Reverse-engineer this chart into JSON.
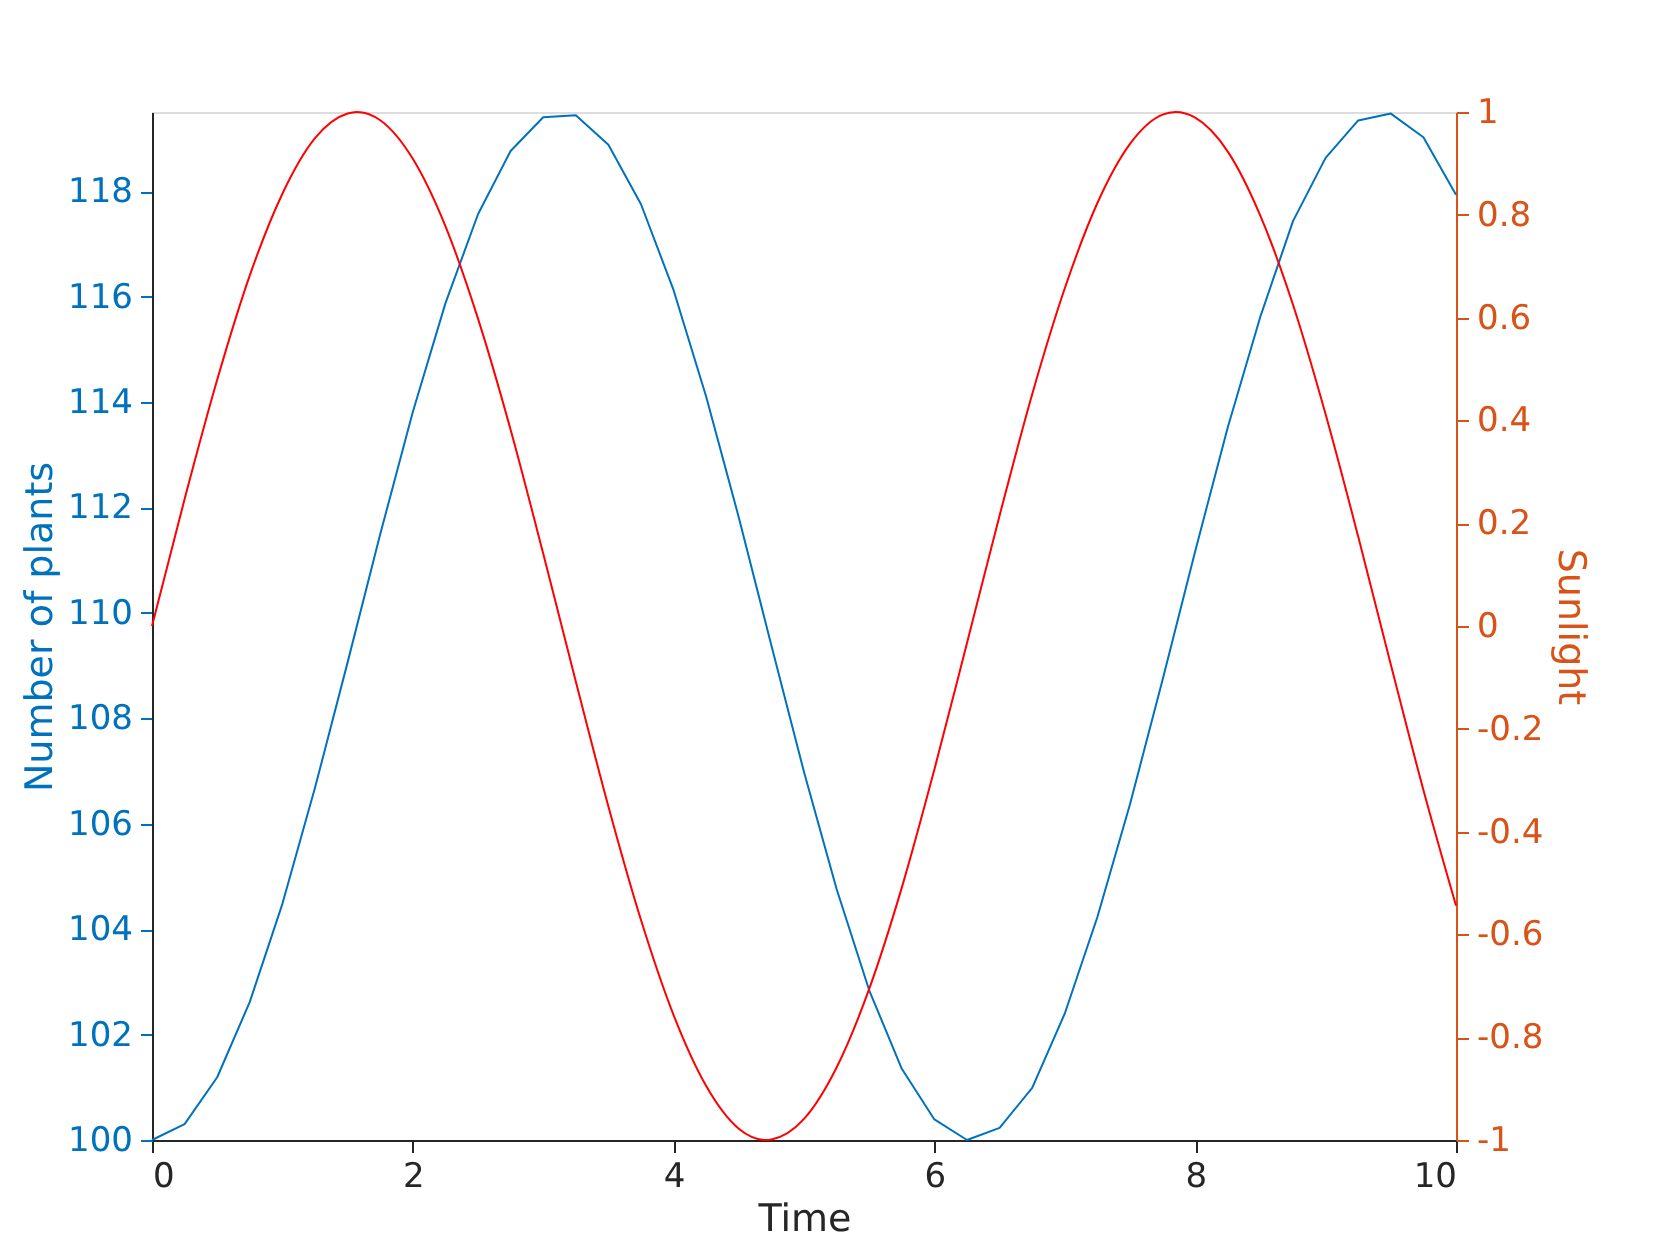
{
  "chart_data": {
    "type": "line",
    "xlabel": "Time",
    "ylabel": "Number of plants",
    "y2label": "Sunlight",
    "xlim": [
      0,
      10
    ],
    "xticks": [
      0,
      2,
      4,
      6,
      8,
      10
    ],
    "ylim": [
      100,
      119.5
    ],
    "yticks": [
      100,
      102,
      104,
      106,
      108,
      110,
      112,
      114,
      116,
      118
    ],
    "y2lim": [
      -1,
      1
    ],
    "y2ticks": [
      -1,
      -0.8,
      -0.6,
      -0.4,
      -0.2,
      0,
      0.2,
      0.4,
      0.6,
      0.8,
      1
    ],
    "grid": false,
    "marker": "none",
    "line_style": "solid",
    "series": [
      {
        "color": "#0072bd",
        "x": [
          0,
          0.25,
          0.5,
          0.75,
          1,
          1.25,
          1.5,
          1.75,
          2,
          2.25,
          2.5,
          2.75,
          3,
          3.25,
          3.5,
          3.75,
          4,
          4.25,
          4.5,
          4.75,
          5,
          5.25,
          5.5,
          5.75,
          6,
          6.25,
          6.5,
          6.75,
          7,
          7.25,
          7.5,
          7.75,
          8,
          8.25,
          8.5,
          8.75,
          9,
          9.25,
          9.5,
          9.75,
          10
        ],
        "values": [
          100.0,
          100.3,
          101.19,
          102.62,
          104.48,
          106.68,
          109.06,
          111.49,
          113.81,
          115.87,
          117.56,
          118.76,
          119.4,
          119.44,
          118.88,
          117.75,
          116.12,
          114.1,
          111.81,
          109.38,
          106.98,
          104.76,
          102.84,
          101.35,
          100.39,
          100.0,
          100.23,
          100.99,
          102.4,
          104.23,
          106.37,
          108.73,
          111.17,
          113.52,
          115.62,
          117.43,
          118.63,
          119.34,
          119.47,
          119.02,
          117.93
        ]
      },
      {
        "color": "#ff0000",
        "axis": "y2",
        "x": [
          0,
          0.25,
          0.5,
          0.75,
          1,
          1.25,
          1.5,
          1.57,
          1.75,
          2,
          2.25,
          2.5,
          2.75,
          3,
          3.25,
          3.5,
          3.75,
          4,
          4.25,
          4.5,
          4.71,
          4.75,
          5,
          5.25,
          5.5,
          5.75,
          6,
          6.25,
          6.5,
          6.75,
          7,
          7.25,
          7.5,
          7.75,
          7.85,
          8,
          8.25,
          8.5,
          8.75,
          9,
          9.25,
          9.5,
          9.75,
          10
        ],
        "values": [
          0,
          0.247,
          0.479,
          0.682,
          0.841,
          0.949,
          0.997,
          1.0,
          0.984,
          0.909,
          0.778,
          0.598,
          0.382,
          0.141,
          -0.108,
          -0.351,
          -0.572,
          -0.757,
          -0.895,
          -0.978,
          -1.0,
          -0.999,
          -0.959,
          -0.859,
          -0.706,
          -0.509,
          -0.279,
          -0.033,
          0.215,
          0.451,
          0.657,
          0.823,
          0.938,
          0.995,
          1.0,
          0.989,
          0.923,
          0.798,
          0.625,
          0.412,
          0.174,
          -0.075,
          -0.319,
          -0.544
        ]
      }
    ]
  }
}
